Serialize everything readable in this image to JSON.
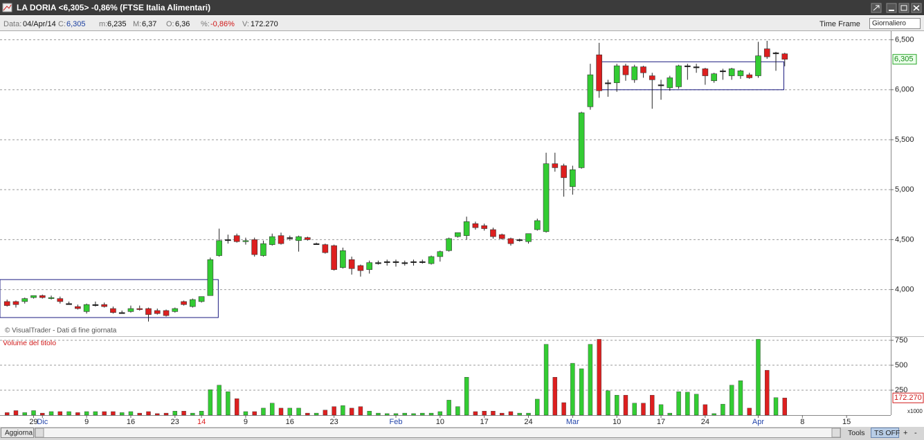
{
  "header": {
    "title": "LA DORIA <6,305> -0,86%  (FTSE Italia Alimentari)"
  },
  "info": [
    {
      "label": "Data:",
      "value": "04/Apr/14"
    },
    {
      "label": "C:",
      "value": "6,305"
    },
    {
      "label": "m:",
      "value": "6,235"
    },
    {
      "label": "M:",
      "value": "6,37"
    },
    {
      "label": "O:",
      "value": "6,36"
    },
    {
      "label": "%:",
      "value": "-0,86%"
    },
    {
      "label": "V:",
      "value": "172.270"
    }
  ],
  "time_frame": {
    "label": "Time Frame",
    "value": "Giornaliero"
  },
  "chart_data": [
    {
      "type": "candlestick",
      "credit": "© VisualTrader - Dati di fine giornata",
      "up_color": "#33cc33",
      "down_color": "#dd1f1f",
      "box_color": "#1a1a80",
      "open": [
        3.88,
        3.88,
        3.88,
        3.92,
        3.94,
        3.91,
        3.91,
        3.86,
        3.83,
        3.78,
        3.85,
        3.85,
        3.81,
        3.77,
        3.78,
        3.81,
        3.81,
        3.79,
        3.79,
        3.78,
        3.88,
        3.83,
        3.88,
        3.94,
        4.34,
        4.5,
        4.54,
        4.48,
        4.5,
        4.34,
        4.45,
        4.54,
        4.52,
        4.49,
        4.52,
        4.46,
        4.45,
        4.44,
        4.22,
        4.3,
        4.24,
        4.2,
        4.27,
        4.28,
        4.28,
        4.27,
        4.28,
        4.28,
        4.26,
        4.33,
        4.39,
        4.53,
        4.54,
        4.66,
        4.64,
        4.6,
        4.55,
        4.51,
        4.5,
        4.48,
        4.6,
        4.58,
        5.26,
        5.24,
        5.03,
        5.22,
        5.83,
        6.35,
        6.07,
        6.07,
        6.24,
        6.1,
        6.23,
        6.14,
        6.05,
        6.02,
        6.03,
        6.24,
        6.23,
        6.21,
        6.09,
        6.19,
        6.14,
        6.14,
        6.15,
        6.14,
        6.41,
        6.37,
        6.36
      ],
      "high": [
        3.9,
        3.89,
        3.92,
        3.94,
        3.95,
        3.94,
        3.93,
        3.88,
        3.85,
        3.86,
        3.88,
        3.87,
        3.83,
        3.79,
        3.84,
        3.84,
        3.82,
        3.81,
        3.8,
        3.82,
        3.89,
        3.91,
        3.93,
        4.32,
        4.61,
        4.55,
        4.56,
        4.52,
        4.52,
        4.49,
        4.56,
        4.57,
        4.54,
        4.54,
        4.53,
        4.47,
        4.46,
        4.45,
        4.42,
        4.33,
        4.25,
        4.29,
        4.29,
        4.3,
        4.3,
        4.29,
        4.3,
        4.3,
        4.34,
        4.39,
        4.52,
        4.57,
        4.73,
        4.68,
        4.66,
        4.62,
        4.56,
        4.52,
        4.51,
        4.56,
        4.71,
        5.37,
        5.37,
        5.26,
        5.24,
        5.78,
        6.26,
        6.47,
        6.1,
        6.26,
        6.26,
        6.25,
        6.24,
        6.17,
        6.1,
        6.14,
        6.25,
        6.26,
        6.26,
        6.22,
        6.17,
        6.21,
        6.22,
        6.2,
        6.17,
        6.48,
        6.49,
        6.38,
        6.37
      ],
      "low": [
        3.83,
        3.82,
        3.86,
        3.91,
        3.91,
        3.9,
        3.86,
        3.85,
        3.8,
        3.76,
        3.83,
        3.82,
        3.76,
        3.76,
        3.77,
        3.79,
        3.68,
        3.75,
        3.73,
        3.77,
        3.84,
        3.82,
        3.87,
        3.94,
        4.33,
        4.46,
        4.47,
        4.45,
        4.33,
        4.33,
        4.44,
        4.45,
        4.49,
        4.38,
        4.49,
        4.45,
        4.36,
        4.19,
        4.21,
        4.15,
        4.13,
        4.16,
        4.25,
        4.24,
        4.23,
        4.24,
        4.24,
        4.26,
        4.25,
        4.28,
        4.38,
        4.52,
        4.5,
        4.6,
        4.59,
        4.51,
        4.5,
        4.44,
        4.48,
        4.46,
        4.59,
        4.57,
        5.18,
        4.93,
        4.95,
        5.21,
        5.8,
        5.92,
        5.93,
        5.98,
        6.09,
        6.07,
        6.12,
        5.81,
        5.9,
        5.99,
        6.01,
        6.1,
        6.17,
        6.05,
        6.07,
        6.1,
        6.1,
        6.11,
        6.11,
        6.12,
        6.31,
        6.19,
        6.235
      ],
      "close": [
        3.84,
        3.85,
        3.91,
        3.94,
        3.92,
        3.92,
        3.88,
        3.86,
        3.81,
        3.85,
        3.85,
        3.83,
        3.77,
        3.77,
        3.81,
        3.8,
        3.75,
        3.76,
        3.74,
        3.81,
        3.85,
        3.9,
        3.93,
        4.3,
        4.49,
        4.5,
        4.48,
        4.49,
        4.35,
        4.46,
        4.53,
        4.46,
        4.52,
        4.53,
        4.5,
        4.46,
        4.37,
        4.2,
        4.39,
        4.21,
        4.19,
        4.27,
        4.27,
        4.28,
        4.28,
        4.27,
        4.28,
        4.28,
        4.33,
        4.38,
        4.51,
        4.57,
        4.68,
        4.62,
        4.61,
        4.53,
        4.51,
        4.46,
        4.5,
        4.56,
        4.69,
        5.26,
        5.22,
        5.12,
        5.2,
        5.77,
        6.15,
        5.99,
        6.07,
        6.24,
        6.15,
        6.23,
        6.17,
        6.1,
        6.05,
        6.12,
        6.24,
        6.24,
        6.23,
        6.14,
        6.16,
        6.19,
        6.21,
        6.19,
        6.12,
        6.34,
        6.33,
        6.37,
        6.305
      ],
      "last_label": "6,305",
      "boxes": [
        {
          "start": -0.8,
          "end": 23.9,
          "low": 3.72,
          "high": 4.1
        },
        {
          "start": 67.2,
          "end": 87.9,
          "low": 6.0,
          "high": 6.28
        }
      ],
      "xlim": [
        -0.8,
        100
      ],
      "ylim": [
        3.54,
        6.58
      ],
      "yticks": [
        {
          "value": 6.5,
          "label": "6,500"
        },
        {
          "value": 6.0,
          "label": "6,000"
        },
        {
          "value": 5.5,
          "label": "5,500"
        },
        {
          "value": 5.0,
          "label": "5,000"
        },
        {
          "value": 4.5,
          "label": "4,500"
        },
        {
          "value": 4.0,
          "label": "4,000"
        }
      ],
      "grid": true
    },
    {
      "type": "bar",
      "title": "Volume del titolo",
      "unit_label": "x1000",
      "values": [
        25,
        45,
        25,
        45,
        20,
        35,
        35,
        35,
        25,
        35,
        35,
        35,
        35,
        25,
        35,
        20,
        35,
        15,
        20,
        40,
        40,
        20,
        40,
        255,
        300,
        235,
        165,
        35,
        35,
        70,
        120,
        70,
        70,
        70,
        20,
        20,
        50,
        85,
        95,
        70,
        85,
        40,
        20,
        15,
        15,
        20,
        15,
        20,
        20,
        35,
        150,
        85,
        380,
        35,
        40,
        40,
        20,
        35,
        20,
        20,
        160,
        710,
        380,
        125,
        520,
        465,
        710,
        760,
        245,
        200,
        200,
        120,
        120,
        200,
        105,
        20,
        235,
        230,
        210,
        105,
        15,
        110,
        300,
        345,
        70,
        760,
        450,
        175,
        172.27
      ],
      "last_label": "172.270",
      "xlim": [
        -0.8,
        100
      ],
      "ylim": [
        0,
        784
      ],
      "yticks": [
        250,
        500,
        750
      ],
      "xticks": [
        {
          "value": 3,
          "label": "29"
        },
        {
          "value": 4,
          "label": "Dic",
          "color": "#2244aa"
        },
        {
          "value": 9,
          "label": "9"
        },
        {
          "value": 14,
          "label": "16"
        },
        {
          "value": 19,
          "label": "23"
        },
        {
          "value": 22,
          "label": "14",
          "color": "#dd1f1f"
        },
        {
          "value": 27,
          "label": "9"
        },
        {
          "value": 32,
          "label": "16"
        },
        {
          "value": 37,
          "label": "23"
        },
        {
          "value": 44,
          "label": "Feb",
          "color": "#2244aa"
        },
        {
          "value": 49,
          "label": "10"
        },
        {
          "value": 54,
          "label": "17"
        },
        {
          "value": 59,
          "label": "24"
        },
        {
          "value": 64,
          "label": "Mar",
          "color": "#2244aa"
        },
        {
          "value": 69,
          "label": "10"
        },
        {
          "value": 74,
          "label": "17"
        },
        {
          "value": 79,
          "label": "24"
        },
        {
          "value": 85,
          "label": "Apr",
          "color": "#2244aa"
        },
        {
          "value": 90,
          "label": "8"
        },
        {
          "value": 95,
          "label": "15"
        }
      ],
      "grid": true
    }
  ],
  "footer": {
    "refresh": "Aggiorna",
    "tools": "Tools",
    "ts": "TS OFF",
    "plus": "+",
    "minus": "-"
  }
}
